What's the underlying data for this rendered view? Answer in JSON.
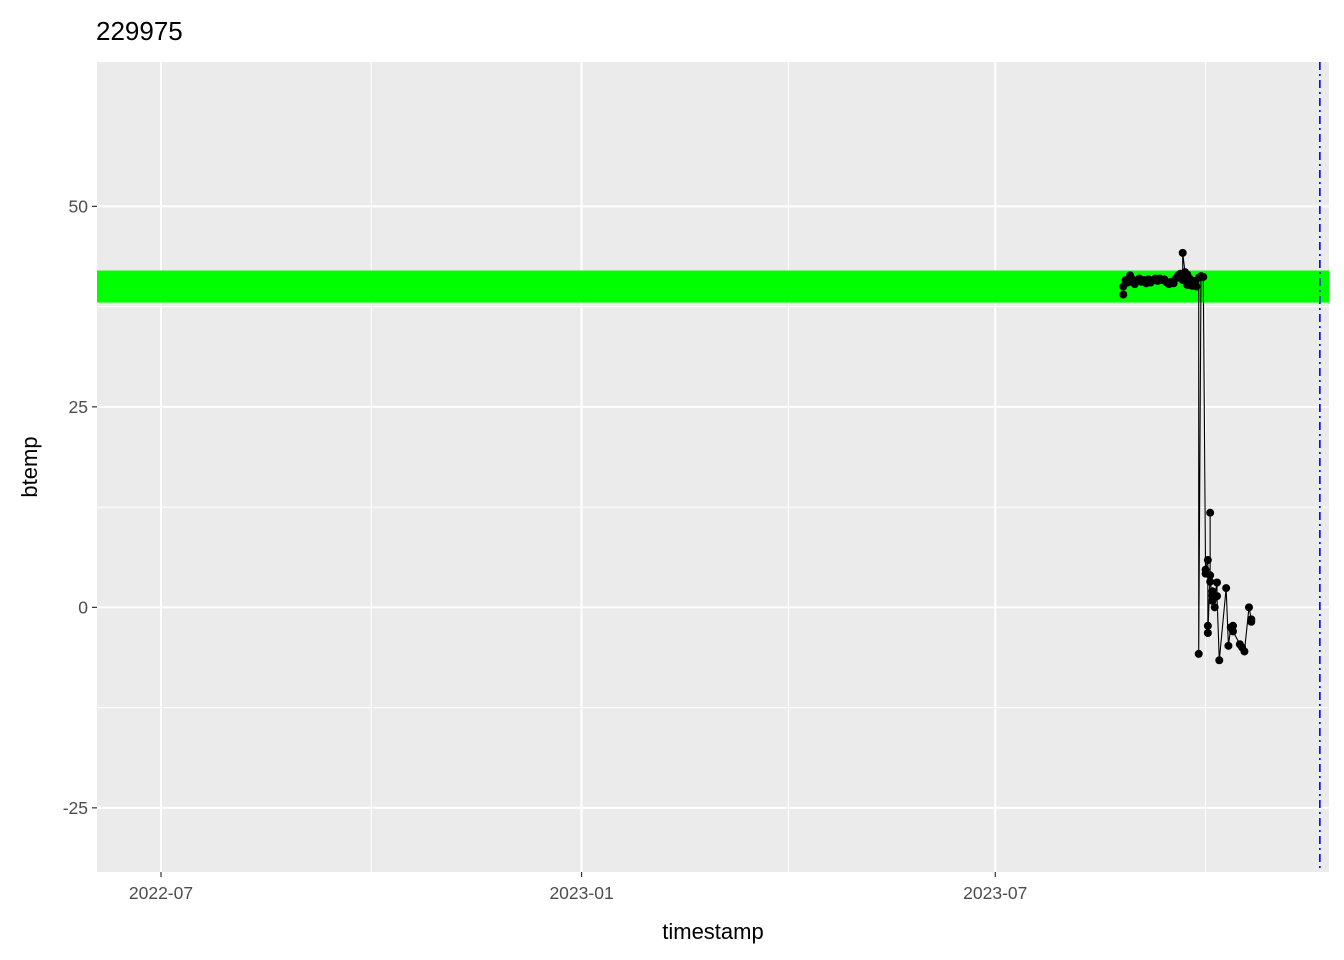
{
  "chart_data": {
    "type": "line",
    "title": "229975",
    "xlabel": "timestamp",
    "ylabel": "btemp",
    "xlim": [
      "2022-06-03",
      "2023-11-24"
    ],
    "ylim": [
      -33,
      68
    ],
    "x_ticks": [
      {
        "date": "2022-07-01",
        "label": "2022-07"
      },
      {
        "date": "2023-01-01",
        "label": "2023-01"
      },
      {
        "date": "2023-07-01",
        "label": "2023-07"
      }
    ],
    "y_ticks": [
      {
        "value": -25,
        "label": "-25"
      },
      {
        "value": 0,
        "label": "0"
      },
      {
        "value": 25,
        "label": "25"
      },
      {
        "value": 50,
        "label": "50"
      }
    ],
    "grid": true,
    "band": {
      "ymin": 38,
      "ymax": 42,
      "color": "#00ff00"
    },
    "vline": {
      "date": "2023-11-20",
      "color": "#0000ff",
      "style": "dotdash"
    },
    "series": [
      {
        "color": "#000000",
        "points": [
          {
            "x": "2023-08-26",
            "y": 39.0
          },
          {
            "x": "2023-08-26",
            "y": 40.0
          },
          {
            "x": "2023-08-27",
            "y": 40.8
          },
          {
            "x": "2023-08-28",
            "y": 40.5
          },
          {
            "x": "2023-08-29",
            "y": 41.4
          },
          {
            "x": "2023-08-30",
            "y": 40.9
          },
          {
            "x": "2023-08-31",
            "y": 40.3
          },
          {
            "x": "2023-09-01",
            "y": 40.7
          },
          {
            "x": "2023-09-02",
            "y": 41.0
          },
          {
            "x": "2023-09-03",
            "y": 40.6
          },
          {
            "x": "2023-09-04",
            "y": 40.8
          },
          {
            "x": "2023-09-05",
            "y": 40.4
          },
          {
            "x": "2023-09-06",
            "y": 40.9
          },
          {
            "x": "2023-09-07",
            "y": 40.5
          },
          {
            "x": "2023-09-08",
            "y": 40.8
          },
          {
            "x": "2023-09-09",
            "y": 41.0
          },
          {
            "x": "2023-09-10",
            "y": 40.7
          },
          {
            "x": "2023-09-11",
            "y": 41.0
          },
          {
            "x": "2023-09-12",
            "y": 40.8
          },
          {
            "x": "2023-09-13",
            "y": 40.9
          },
          {
            "x": "2023-09-14",
            "y": 40.5
          },
          {
            "x": "2023-09-15",
            "y": 40.3
          },
          {
            "x": "2023-09-16",
            "y": 40.6
          },
          {
            "x": "2023-09-17",
            "y": 40.4
          },
          {
            "x": "2023-09-18",
            "y": 41.0
          },
          {
            "x": "2023-09-19",
            "y": 41.4
          },
          {
            "x": "2023-09-20",
            "y": 41.6
          },
          {
            "x": "2023-09-21",
            "y": 40.8
          },
          {
            "x": "2023-09-21",
            "y": 44.2
          },
          {
            "x": "2023-09-22",
            "y": 41.8
          },
          {
            "x": "2023-09-23",
            "y": 40.2
          },
          {
            "x": "2023-09-23",
            "y": 41.5
          },
          {
            "x": "2023-09-24",
            "y": 41.0
          },
          {
            "x": "2023-09-25",
            "y": 40.1
          },
          {
            "x": "2023-09-26",
            "y": 40.7
          },
          {
            "x": "2023-09-27",
            "y": 40.0
          },
          {
            "x": "2023-09-28",
            "y": 41.1
          },
          {
            "x": "2023-09-28",
            "y": -5.8
          },
          {
            "x": "2023-09-29",
            "y": 41.3
          },
          {
            "x": "2023-09-30",
            "y": 41.2
          },
          {
            "x": "2023-10-01",
            "y": 4.2
          },
          {
            "x": "2023-10-01",
            "y": 4.7
          },
          {
            "x": "2023-10-02",
            "y": 5.9
          },
          {
            "x": "2023-10-02",
            "y": -2.3
          },
          {
            "x": "2023-10-02",
            "y": -3.2
          },
          {
            "x": "2023-10-03",
            "y": 4.0
          },
          {
            "x": "2023-10-03",
            "y": 11.8
          },
          {
            "x": "2023-10-03",
            "y": 3.2
          },
          {
            "x": "2023-10-04",
            "y": 1.5
          },
          {
            "x": "2023-10-04",
            "y": 0.8
          },
          {
            "x": "2023-10-04",
            "y": 2.0
          },
          {
            "x": "2023-10-05",
            "y": 0.0
          },
          {
            "x": "2023-10-05",
            "y": 1.3
          },
          {
            "x": "2023-10-06",
            "y": 3.1
          },
          {
            "x": "2023-10-06",
            "y": 1.4
          },
          {
            "x": "2023-10-07",
            "y": -6.6
          },
          {
            "x": "2023-10-10",
            "y": 2.4
          },
          {
            "x": "2023-10-11",
            "y": -4.8
          },
          {
            "x": "2023-10-12",
            "y": -2.5
          },
          {
            "x": "2023-10-13",
            "y": -2.3
          },
          {
            "x": "2023-10-13",
            "y": -3.0
          },
          {
            "x": "2023-10-16",
            "y": -4.6
          },
          {
            "x": "2023-10-17",
            "y": -5.0
          },
          {
            "x": "2023-10-18",
            "y": -5.5
          },
          {
            "x": "2023-10-20",
            "y": 0.0
          },
          {
            "x": "2023-10-21",
            "y": -1.5
          },
          {
            "x": "2023-10-21",
            "y": -1.8
          }
        ]
      }
    ]
  }
}
